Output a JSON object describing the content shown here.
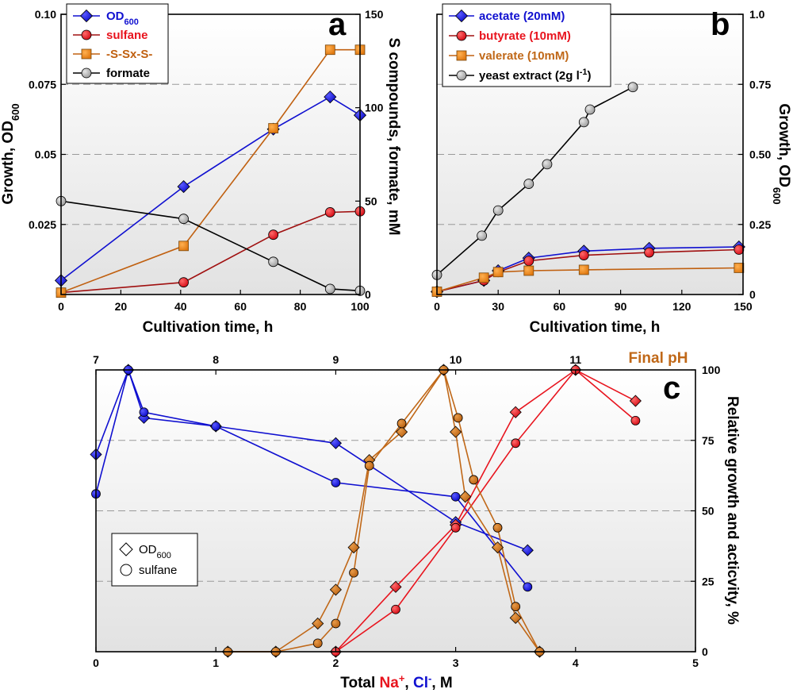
{
  "chart_data": [
    {
      "type": "line",
      "panel": "a",
      "xlabel": "Cultivation time, h",
      "ylabel_left": "Growth, OD600",
      "ylabel_left_parts": [
        "Growth, OD",
        "600"
      ],
      "ylabel_right": "S compounds, formate, mM",
      "xlim": [
        0,
        100
      ],
      "ylim_left": [
        0,
        0.1
      ],
      "ylim_right": [
        0,
        150
      ],
      "x_ticks": [
        "0",
        "20",
        "40",
        "60",
        "80",
        "100"
      ],
      "y_left_ticks": [
        "0.025",
        "0.05",
        "0.075",
        "0.10"
      ],
      "y_right_ticks": [
        "0",
        "50",
        "100",
        "150"
      ],
      "legend_position": "top-left",
      "series": [
        {
          "name": "OD600",
          "name_base": "OD",
          "name_sub": "600",
          "axis": "left",
          "marker": "diamond",
          "color": "#1010d0",
          "line": "#1010d0",
          "x": [
            0,
            41,
            71,
            90,
            100
          ],
          "y": [
            0.005,
            0.0385,
            0.059,
            0.0705,
            0.064
          ]
        },
        {
          "name": "sulfane",
          "axis": "right",
          "marker": "circle",
          "color": "#e8141e",
          "line": "#a01010",
          "x": [
            0,
            41,
            71,
            90,
            100
          ],
          "y": [
            1,
            6.5,
            32,
            44,
            44.5
          ]
        },
        {
          "name": "-S-Sx-S-",
          "axis": "right",
          "marker": "square",
          "color": "#f08a18",
          "line": "#c06010",
          "x": [
            0,
            41,
            71,
            90,
            100
          ],
          "y": [
            1,
            26,
            89,
            131,
            131
          ]
        },
        {
          "name": "formate",
          "axis": "right",
          "marker": "circle",
          "color": "#b8b8b8",
          "line": "#000000",
          "x": [
            0,
            41,
            71,
            90,
            100
          ],
          "y": [
            50,
            40.5,
            17.5,
            3,
            2
          ]
        }
      ]
    },
    {
      "type": "line",
      "panel": "b",
      "xlabel": "Cultivation time, h",
      "ylabel_right": "Growth, OD600",
      "ylabel_right_parts": [
        "Growth, OD",
        "600"
      ],
      "xlim": [
        0,
        150
      ],
      "ylim": [
        0,
        1.0
      ],
      "x_ticks": [
        "0",
        "30",
        "60",
        "90",
        "120",
        "150"
      ],
      "y_ticks": [
        "0",
        "0.25",
        "0.50",
        "0.75",
        "1.0"
      ],
      "legend_position": "top-left",
      "series": [
        {
          "name": "acetate (20mM)",
          "marker": "diamond",
          "color": "#1010d0",
          "line": "#1010d0",
          "x": [
            0,
            23,
            30,
            45,
            72,
            104,
            148
          ],
          "y": [
            0.01,
            0.05,
            0.085,
            0.13,
            0.155,
            0.165,
            0.17
          ]
        },
        {
          "name": "butyrate (10mM)",
          "marker": "circle",
          "color": "#e8141e",
          "line": "#a01010",
          "x": [
            0,
            23,
            30,
            45,
            72,
            104,
            148
          ],
          "y": [
            0.01,
            0.05,
            0.08,
            0.12,
            0.14,
            0.15,
            0.16
          ]
        },
        {
          "name": "valerate (10mM)",
          "marker": "square",
          "color": "#f08a18",
          "line": "#c06010",
          "x": [
            0,
            23,
            30,
            45,
            72,
            148
          ],
          "y": [
            0.01,
            0.06,
            0.08,
            0.085,
            0.088,
            0.095
          ]
        },
        {
          "name": "yeast extract (2g l-1)",
          "name_base": "yeast extract (2g l",
          "name_sup": "-1",
          "name_tail": ")",
          "marker": "circle",
          "color": "#b8b8b8",
          "line": "#000000",
          "x": [
            0,
            22,
            30,
            45,
            54,
            72,
            75,
            96
          ],
          "y": [
            0.07,
            0.21,
            0.3,
            0.395,
            0.465,
            0.615,
            0.66,
            0.74
          ]
        }
      ]
    },
    {
      "type": "line",
      "panel": "c",
      "xlabel": "Total Na+, Cl-, M",
      "xlabel_parts": [
        "Total ",
        "Na",
        "+",
        ", ",
        "Cl",
        "-",
        ", M"
      ],
      "top_label": "Final pH",
      "ylabel_right": "Relative growth and acticvity, %",
      "xlim": [
        0,
        5
      ],
      "x_ticks": [
        "0",
        "1",
        "2",
        "3",
        "4",
        "5"
      ],
      "top_xlim": [
        7,
        12
      ],
      "top_ticks": [
        "7",
        "8",
        "9",
        "10",
        "11"
      ],
      "ylim": [
        0,
        100
      ],
      "y_ticks": [
        "0",
        "25",
        "50",
        "75",
        "100"
      ],
      "legend_position": "lower-left",
      "legend": [
        {
          "name": "OD600",
          "name_base": "OD",
          "name_sub": "600",
          "marker": "diamond"
        },
        {
          "name": "sulfane",
          "marker": "circle"
        }
      ],
      "colors": {
        "Na": "#e8141e",
        "Cl": "#1010d0",
        "pH": "#c06818"
      },
      "series": [
        {
          "name": "Cl- OD600",
          "variable": "Cl",
          "marker": "diamond",
          "color": "#1010d0",
          "line": "#1010d0",
          "x": [
            0,
            0.27,
            0.4,
            1.0,
            2.0,
            3.0,
            3.6
          ],
          "y": [
            70,
            100,
            83,
            80,
            74,
            46,
            36
          ]
        },
        {
          "name": "Cl- sulfane",
          "variable": "Cl",
          "marker": "circle",
          "color": "#1010d0",
          "line": "#1010d0",
          "x": [
            0,
            0.27,
            0.4,
            1.0,
            2.0,
            3.0,
            3.6
          ],
          "y": [
            56,
            100,
            85,
            80,
            60,
            55,
            23
          ]
        },
        {
          "name": "Na+ OD600",
          "variable": "Na",
          "marker": "diamond",
          "color": "#e8141e",
          "line": "#e8141e",
          "x": [
            2.0,
            2.5,
            3.0,
            3.5,
            4.0,
            4.5
          ],
          "y": [
            0,
            23,
            45,
            85,
            100,
            89
          ]
        },
        {
          "name": "Na+ sulfane",
          "variable": "Na",
          "marker": "circle",
          "color": "#e8141e",
          "line": "#e8141e",
          "x": [
            2.0,
            2.5,
            3.0,
            3.5,
            4.0,
            4.5
          ],
          "y": [
            0,
            15,
            44,
            74,
            100,
            82
          ]
        },
        {
          "name": "pH OD600",
          "variable": "pH",
          "marker": "diamond",
          "color": "#c06818",
          "line": "#c06818",
          "x": [
            8.1,
            8.5,
            8.85,
            9.0,
            9.15,
            9.28,
            9.55,
            9.9,
            10.0,
            10.08,
            10.35,
            10.5,
            10.7
          ],
          "y": [
            0,
            0,
            10,
            22,
            37,
            68,
            78,
            100,
            78,
            55,
            37,
            12,
            0
          ]
        },
        {
          "name": "pH sulfane",
          "variable": "pH",
          "marker": "circle",
          "color": "#c06818",
          "line": "#c06818",
          "x": [
            8.1,
            8.5,
            8.85,
            9.0,
            9.15,
            9.28,
            9.55,
            9.9,
            10.02,
            10.15,
            10.35,
            10.5,
            10.7
          ],
          "y": [
            0,
            0,
            3,
            10,
            28,
            66,
            81,
            100,
            83,
            61,
            44,
            16,
            0
          ]
        }
      ]
    }
  ]
}
